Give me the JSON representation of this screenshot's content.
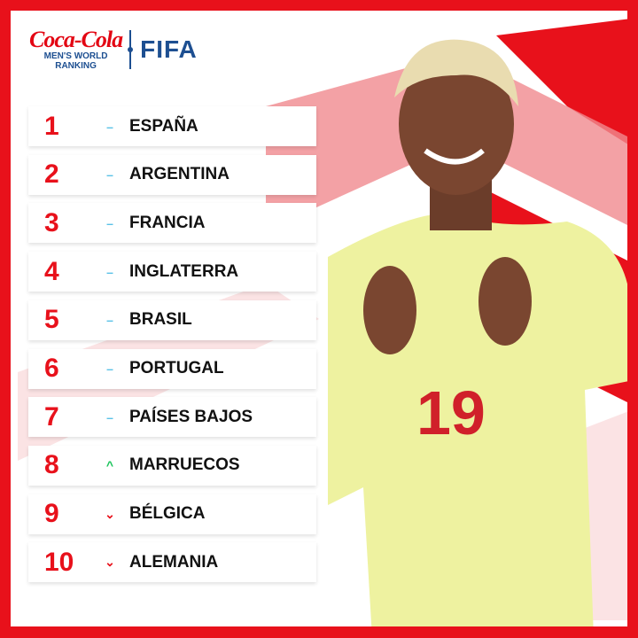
{
  "header": {
    "sponsor_logo": "Coca-Cola",
    "subtitle_line1": "MEN'S WORLD",
    "subtitle_line2": "RANKING",
    "org_logo": "FIFA"
  },
  "colors": {
    "frame": "#e8111b",
    "rank": "#e8111b",
    "same": "#5bc2e7",
    "up": "#19c35a",
    "down": "#e8111b",
    "logo_blue": "#1d4f91"
  },
  "ranking": [
    {
      "rank": "1",
      "change": "same",
      "symbol": "–",
      "team": "ESPAÑA"
    },
    {
      "rank": "2",
      "change": "same",
      "symbol": "–",
      "team": "ARGENTINA"
    },
    {
      "rank": "3",
      "change": "same",
      "symbol": "–",
      "team": "FRANCIA"
    },
    {
      "rank": "4",
      "change": "same",
      "symbol": "–",
      "team": "INGLATERRA"
    },
    {
      "rank": "5",
      "change": "same",
      "symbol": "–",
      "team": "BRASIL"
    },
    {
      "rank": "6",
      "change": "same",
      "symbol": "–",
      "team": "PORTUGAL"
    },
    {
      "rank": "7",
      "change": "same",
      "symbol": "–",
      "team": "PAÍSES BAJOS"
    },
    {
      "rank": "8",
      "change": "up",
      "symbol": "^",
      "team": "MARRUECOS"
    },
    {
      "rank": "9",
      "change": "down",
      "symbol": "⌄",
      "team": "BÉLGICA"
    },
    {
      "rank": "10",
      "change": "down",
      "symbol": "⌄",
      "team": "ALEMANIA"
    }
  ],
  "player": {
    "shirt_number": "19"
  }
}
